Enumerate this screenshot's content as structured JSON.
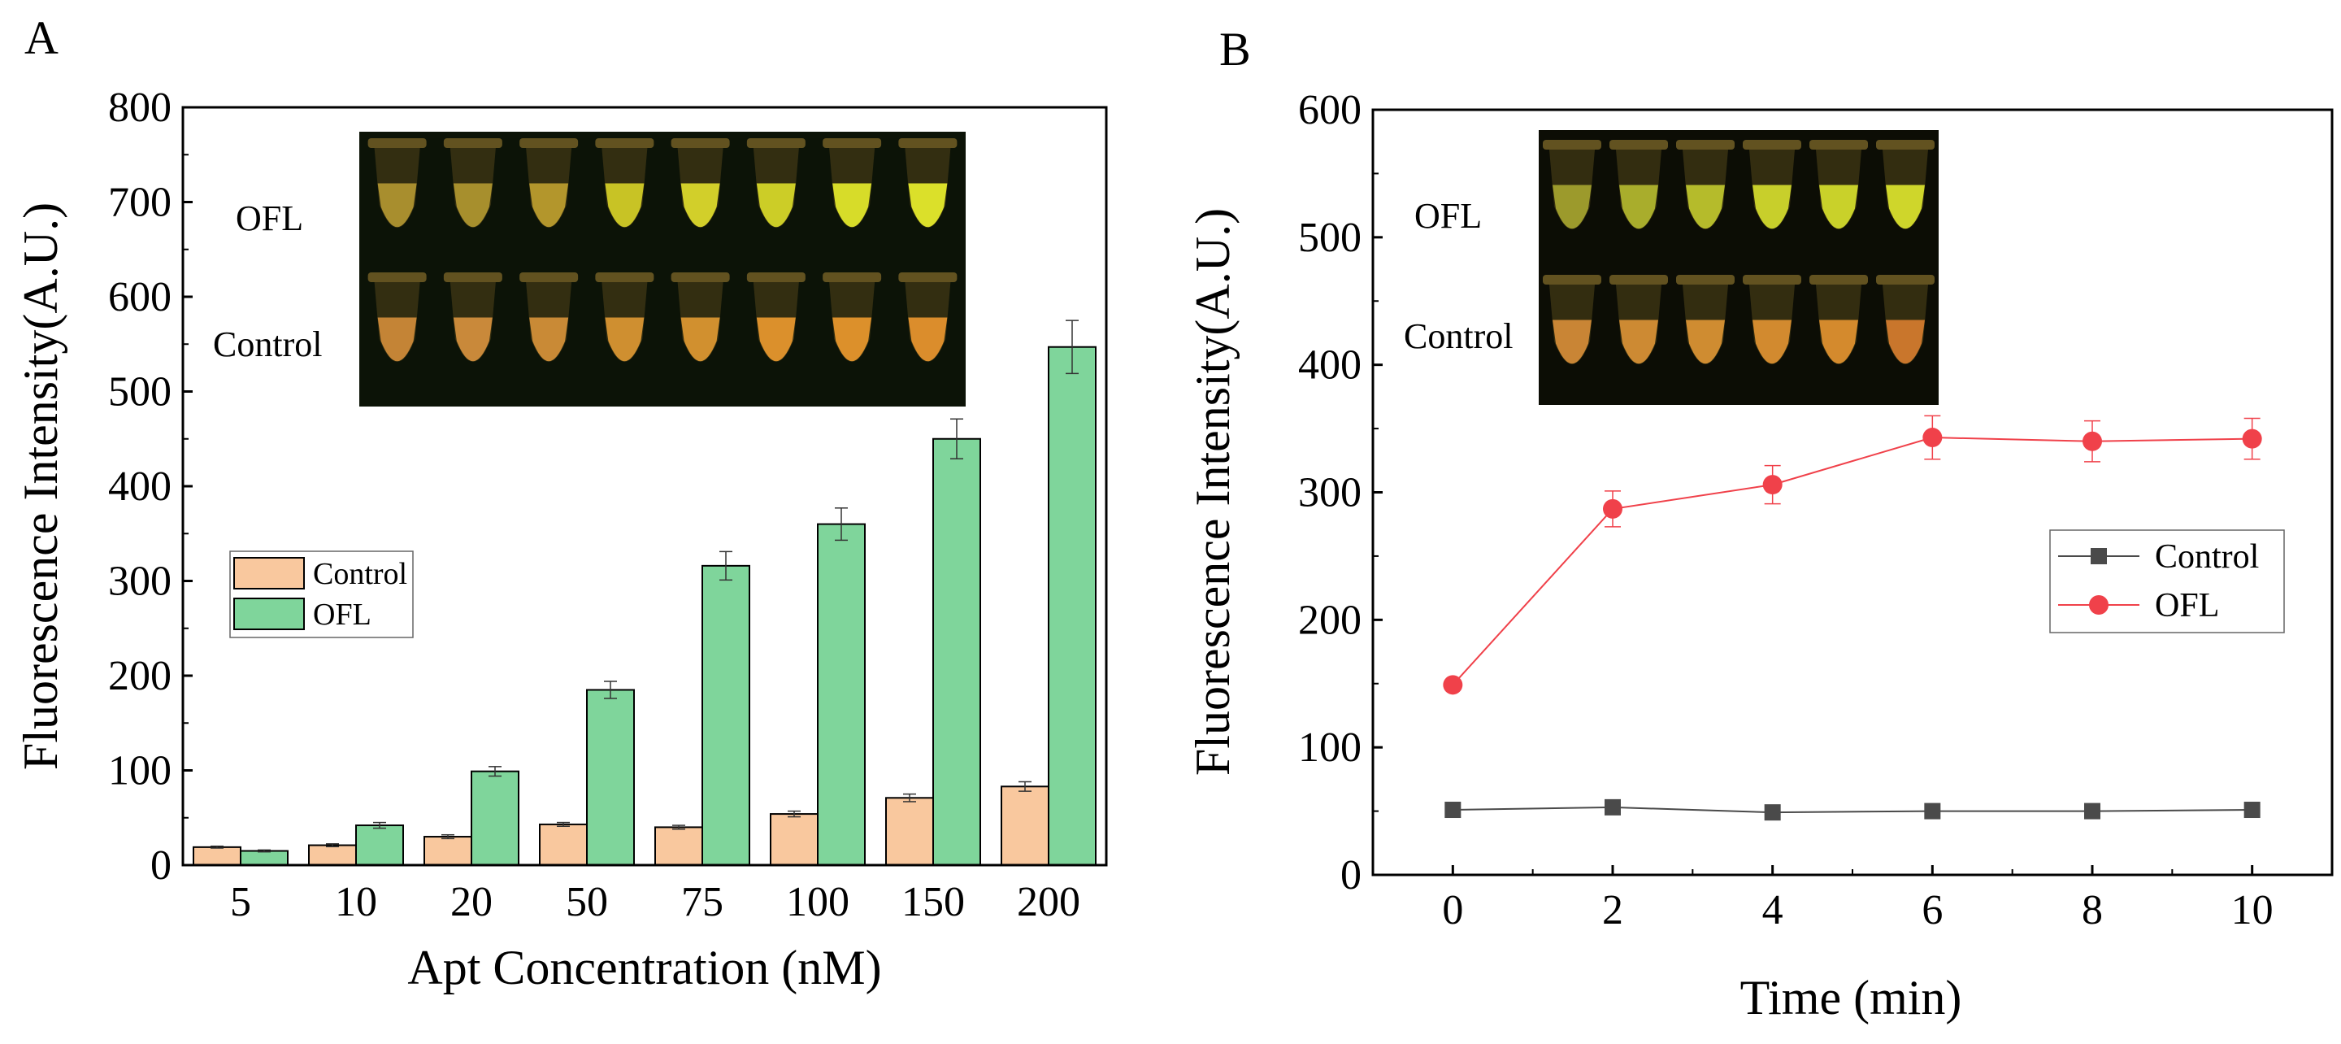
{
  "panels": [
    {
      "id": "A",
      "label": "A",
      "inset": {
        "alt": "Photo of tubes under illumination (concentration series)",
        "rows": [
          "OFL",
          "Control"
        ],
        "tube_count": 8,
        "colors": {
          "OFL": [
            "#a88e2e",
            "#a78f2d",
            "#b3962c",
            "#c8c325",
            "#d2cf2a",
            "#cccd27",
            "#d7dc29",
            "#dbe02a"
          ],
          "Control": [
            "#c48436",
            "#c9893a",
            "#c98a36",
            "#cf8f30",
            "#d1902f",
            "#db902c",
            "#dc902b",
            "#db8d2c"
          ]
        }
      },
      "chart_data": {
        "type": "bar",
        "title": "",
        "xlabel": "Apt Concentration (nM)",
        "ylabel": "Fluorescence Intensity(A.U.)",
        "categories": [
          "5",
          "10",
          "20",
          "50",
          "75",
          "100",
          "150",
          "200"
        ],
        "ylim": [
          0,
          800
        ],
        "yticks": [
          0,
          100,
          200,
          300,
          400,
          500,
          600,
          700,
          800
        ],
        "legend_position": "middle-left",
        "series": [
          {
            "name": "Control",
            "color": "#f9c89e",
            "values": [
              19,
              21,
              30,
              43,
              40,
              54,
              71,
              83
            ],
            "errors": [
              1,
              1.5,
              2,
              2,
              2,
              3,
              4,
              5
            ]
          },
          {
            "name": "OFL",
            "color": "#7fd59b",
            "values": [
              15,
              42,
              99,
              185,
              316,
              360,
              450,
              547
            ],
            "errors": [
              1,
              3,
              5,
              9,
              15,
              17,
              21,
              28
            ]
          }
        ]
      }
    },
    {
      "id": "B",
      "label": "B",
      "inset": {
        "alt": "Photo of tubes under illumination (time series)",
        "rows": [
          "OFL",
          "Control"
        ],
        "tube_count": 6,
        "colors": {
          "OFL": [
            "#9c9a2c",
            "#a9ad2c",
            "#b5bb2b",
            "#c8cf2b",
            "#c9d12a",
            "#cfd62b"
          ],
          "Control": [
            "#c98535",
            "#cd8a33",
            "#cf8c31",
            "#d28a2f",
            "#d48a2d",
            "#c9762c"
          ]
        }
      },
      "chart_data": {
        "type": "line",
        "title": "",
        "xlabel": "Time (min)",
        "ylabel": "Fluorescence Intensity(A.U.)",
        "x": [
          0,
          2,
          4,
          6,
          8,
          10
        ],
        "xlim": [
          -1,
          11
        ],
        "xticks": [
          0,
          2,
          4,
          6,
          8,
          10
        ],
        "ylim": [
          0,
          600
        ],
        "yticks": [
          0,
          100,
          200,
          300,
          400,
          500,
          600
        ],
        "legend_position": "middle-right",
        "series": [
          {
            "name": "Control",
            "color": "#4a4a4a",
            "marker": "square",
            "values": [
              51,
              53,
              49,
              50,
              50,
              51
            ],
            "errors": [
              0,
              0,
              0,
              0,
              0,
              0
            ]
          },
          {
            "name": "OFL",
            "color": "#f0414a",
            "marker": "circle",
            "values": [
              149,
              287,
              306,
              343,
              340,
              342
            ],
            "errors": [
              0,
              14,
              15,
              17,
              16,
              16
            ]
          }
        ]
      }
    }
  ]
}
